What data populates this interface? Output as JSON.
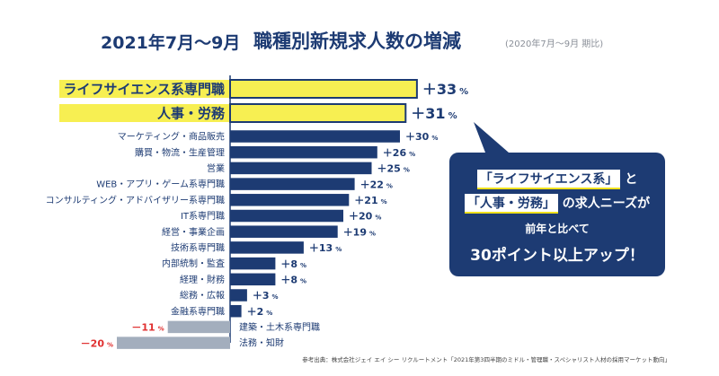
{
  "header": {
    "period": "2021年7月〜9月",
    "title": "職種別新規求人数の増減",
    "comparison": "(2020年7月〜9月 期比)"
  },
  "chart_data": {
    "type": "bar",
    "orientation": "horizontal",
    "title": "職種別新規求人数の増減",
    "unit": "%",
    "xlim": [
      -20,
      33
    ],
    "categories": [
      "ライフサイエンス系専門職",
      "人事・労務",
      "マーケティング・商品販売",
      "購買・物流・生産管理",
      "営業",
      "WEB・アプリ・ゲーム系専門職",
      "コンサルティング・アドバイザリー系専門職",
      "IT系専門職",
      "経営・事業企画",
      "技術系専門職",
      "内部統制・監査",
      "経理・財務",
      "総務・広報",
      "金融系専門職",
      "建築・土木系専門職",
      "法務・知財"
    ],
    "values": [
      33,
      31,
      30,
      26,
      25,
      22,
      21,
      20,
      19,
      13,
      8,
      8,
      3,
      2,
      -11,
      -20
    ],
    "value_labels": [
      "＋33",
      "＋31",
      "＋30",
      "＋26",
      "＋25",
      "＋22",
      "＋21",
      "＋20",
      "＋19",
      "＋13",
      "＋8",
      "＋8",
      "＋3",
      "＋2",
      "－11",
      "－20"
    ],
    "highlighted": [
      true,
      true,
      false,
      false,
      false,
      false,
      false,
      false,
      false,
      false,
      false,
      false,
      false,
      false,
      false,
      false
    ],
    "colors": {
      "positive": "#1d3b73",
      "negative": "#a3aebd",
      "highlight_fill": "#f7ef52",
      "highlight_stroke": "#1d3b73",
      "negative_label": "#e03030"
    }
  },
  "callout": {
    "line1_box": "「ライフサイエンス系」",
    "line1_rest": "と",
    "line2_box": "「人事・労務」",
    "line2_rest": "の求人ニーズが",
    "line3": "前年と比べて",
    "line4": "30ポイント以上アップ！",
    "color": "#1d3b73"
  },
  "source": "参考出典：株式会社ジェイ エイ シー リクルートメント「2021年第3四半期のミドル・管理職・スペシャリスト人材の採用マーケット動向」"
}
